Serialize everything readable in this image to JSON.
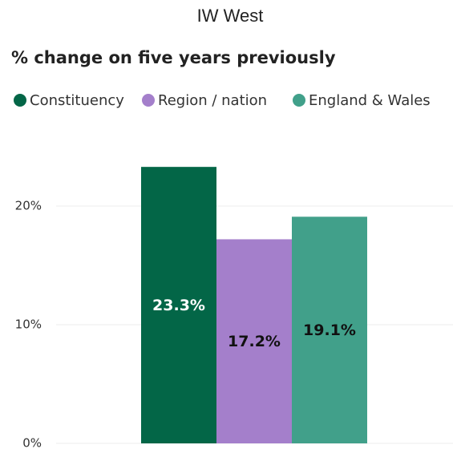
{
  "chart_data": {
    "type": "bar",
    "title": "IW West",
    "subtitle": "% change on five years previously",
    "categories": [
      null
    ],
    "series": [
      {
        "name": "Constituency",
        "color": "#036647",
        "label_color": "#ffffff",
        "values": [
          23.3
        ],
        "value_labels": [
          "23.3%"
        ]
      },
      {
        "name": "Region / nation",
        "color": "#a47fcb",
        "label_color": "#111111",
        "values": [
          17.2
        ],
        "value_labels": [
          "17.2%"
        ]
      },
      {
        "name": "England & Wales",
        "color": "#41a08a",
        "label_color": "#111111",
        "values": [
          19.1
        ],
        "value_labels": [
          "19.1%"
        ]
      }
    ],
    "ylim": [
      0,
      25
    ],
    "yticks": [
      {
        "value": 0,
        "label": "0%"
      },
      {
        "value": 10,
        "label": "10%"
      },
      {
        "value": 20,
        "label": "20%"
      }
    ],
    "grid": true
  }
}
